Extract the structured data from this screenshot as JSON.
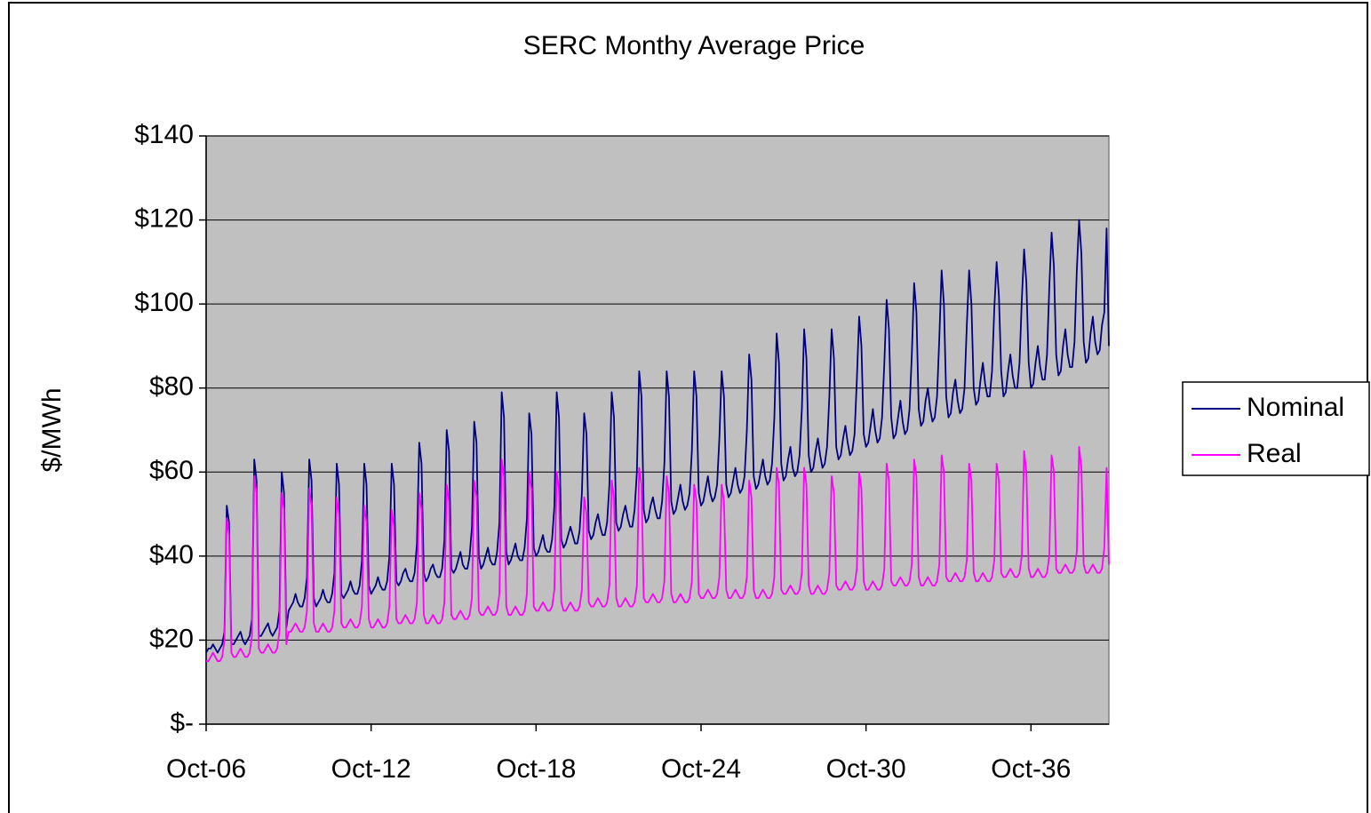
{
  "chart_data": {
    "type": "line",
    "title": "SERC Monthy Average Price",
    "y_label": "$/MWh",
    "categories": [
      "Oct-06",
      null,
      null,
      null,
      null,
      null,
      null,
      null,
      null,
      null,
      null,
      null,
      null,
      null,
      null,
      null,
      null,
      null,
      null,
      null,
      null,
      null,
      null,
      null,
      null,
      null,
      null,
      null,
      null,
      null,
      null,
      null,
      null,
      null,
      null,
      null,
      null,
      null,
      null,
      null,
      null,
      null,
      null,
      null,
      null,
      null,
      null,
      null,
      null,
      null,
      null,
      null,
      null,
      null,
      null,
      null,
      null,
      null,
      null,
      null,
      null,
      null,
      null,
      null,
      null,
      null,
      null,
      null,
      null,
      null,
      null,
      null,
      "Oct-12",
      null,
      null,
      null,
      null,
      null,
      null,
      null,
      null,
      null,
      null,
      null,
      null,
      null,
      null,
      null,
      null,
      null,
      null,
      null,
      null,
      null,
      null,
      null,
      null,
      null,
      null,
      null,
      null,
      null,
      null,
      null,
      null,
      null,
      null,
      null,
      null,
      null,
      null,
      null,
      null,
      null,
      null,
      null,
      null,
      null,
      null,
      null,
      null,
      null,
      null,
      null,
      null,
      null,
      null,
      null,
      null,
      null,
      null,
      null,
      null,
      null,
      null,
      null,
      null,
      null,
      null,
      null,
      null,
      null,
      null,
      null,
      "Oct-18",
      null,
      null,
      null,
      null,
      null,
      null,
      null,
      null,
      null,
      null,
      null,
      null,
      null,
      null,
      null,
      null,
      null,
      null,
      null,
      null,
      null,
      null,
      null,
      null,
      null,
      null,
      null,
      null,
      null,
      null,
      null,
      null,
      null,
      null,
      null,
      null,
      null,
      null,
      null,
      null,
      null,
      null,
      null,
      null,
      null,
      null,
      null,
      null,
      null,
      null,
      null,
      null,
      null,
      null,
      null,
      null,
      null,
      null,
      null,
      null,
      null,
      null,
      null,
      null,
      null,
      null,
      null,
      null,
      null,
      null,
      null,
      "Oct-24",
      null,
      null,
      null,
      null,
      null,
      null,
      null,
      null,
      null,
      null,
      null,
      null,
      null,
      null,
      null,
      null,
      null,
      null,
      null,
      null,
      null,
      null,
      null,
      null,
      null,
      null,
      null,
      null,
      null,
      null,
      null,
      null,
      null,
      null,
      null,
      null,
      null,
      null,
      null,
      null,
      null,
      null,
      null,
      null,
      null,
      null,
      null,
      null,
      null,
      null,
      null,
      null,
      null,
      null,
      null,
      null,
      null,
      null,
      null,
      null,
      null,
      null,
      null,
      null,
      null,
      null,
      null,
      null,
      null,
      null,
      null,
      "Oct-30",
      null,
      null,
      null,
      null,
      null,
      null,
      null,
      null,
      null,
      null,
      null,
      null,
      null,
      null,
      null,
      null,
      null,
      null,
      null,
      null,
      null,
      null,
      null,
      null,
      null,
      null,
      null,
      null,
      null,
      null,
      null,
      null,
      null,
      null,
      null,
      null,
      null,
      null,
      null,
      null,
      null,
      null,
      null,
      null,
      null,
      null,
      null,
      null,
      null,
      null,
      null,
      null,
      null,
      null,
      null,
      null,
      null,
      null,
      null,
      null,
      null,
      null,
      null,
      null,
      null,
      null,
      null,
      null,
      null,
      null,
      null,
      "Oct-36",
      null,
      null,
      null,
      null,
      null,
      null,
      null,
      null,
      null,
      null,
      null,
      null,
      null,
      null,
      null,
      null,
      null,
      null,
      null,
      null,
      null,
      null,
      null,
      null,
      null,
      null,
      null,
      null,
      null,
      null,
      null,
      null,
      null,
      null
    ],
    "series": [
      {
        "name": "Nominal",
        "color": "#000080",
        "values": [
          17,
          18,
          18,
          19,
          18,
          17,
          18,
          19,
          22,
          52,
          48,
          19,
          19,
          20,
          21,
          22,
          20,
          19,
          20,
          21,
          25,
          63,
          58,
          21,
          21,
          22,
          23,
          24,
          22,
          21,
          22,
          23,
          27,
          60,
          55,
          23,
          27,
          28,
          29,
          31,
          29,
          28,
          28,
          30,
          35,
          63,
          58,
          30,
          28,
          29,
          30,
          32,
          30,
          29,
          29,
          31,
          36,
          62,
          57,
          31,
          30,
          31,
          32,
          34,
          32,
          31,
          31,
          33,
          39,
          62,
          57,
          33,
          31,
          32,
          33,
          35,
          33,
          32,
          32,
          34,
          40,
          62,
          57,
          34,
          33,
          34,
          36,
          37,
          35,
          34,
          34,
          36,
          43,
          67,
          62,
          36,
          34,
          35,
          37,
          38,
          36,
          35,
          35,
          37,
          44,
          70,
          65,
          37,
          36,
          37,
          39,
          41,
          38,
          37,
          37,
          40,
          47,
          72,
          67,
          40,
          37,
          38,
          40,
          42,
          39,
          38,
          38,
          41,
          48,
          79,
          73,
          41,
          38,
          39,
          41,
          43,
          40,
          39,
          39,
          42,
          49,
          74,
          69,
          42,
          40,
          41,
          43,
          45,
          42,
          41,
          41,
          44,
          52,
          79,
          73,
          44,
          42,
          43,
          45,
          47,
          45,
          43,
          43,
          46,
          55,
          74,
          69,
          46,
          44,
          45,
          48,
          50,
          47,
          45,
          45,
          48,
          57,
          79,
          73,
          48,
          46,
          47,
          50,
          52,
          49,
          47,
          47,
          51,
          60,
          84,
          78,
          51,
          48,
          49,
          52,
          54,
          51,
          49,
          49,
          53,
          62,
          84,
          78,
          53,
          50,
          51,
          54,
          57,
          53,
          51,
          52,
          55,
          65,
          84,
          78,
          55,
          52,
          53,
          56,
          59,
          55,
          53,
          54,
          57,
          68,
          84,
          78,
          57,
          54,
          55,
          58,
          61,
          57,
          55,
          56,
          59,
          70,
          88,
          82,
          59,
          56,
          57,
          60,
          63,
          59,
          57,
          58,
          62,
          73,
          93,
          86,
          62,
          58,
          59,
          63,
          66,
          61,
          59,
          60,
          64,
          75,
          94,
          87,
          64,
          60,
          61,
          65,
          68,
          64,
          61,
          62,
          66,
          78,
          94,
          87,
          66,
          63,
          64,
          68,
          71,
          67,
          64,
          65,
          69,
          82,
          97,
          90,
          69,
          66,
          67,
          71,
          75,
          70,
          67,
          68,
          73,
          86,
          101,
          94,
          73,
          68,
          69,
          73,
          77,
          72,
          69,
          70,
          75,
          88,
          105,
          98,
          75,
          71,
          72,
          77,
          80,
          75,
          72,
          73,
          78,
          92,
          108,
          100,
          78,
          73,
          74,
          79,
          82,
          77,
          74,
          75,
          80,
          95,
          108,
          100,
          80,
          76,
          77,
          82,
          86,
          81,
          78,
          78,
          84,
          99,
          110,
          102,
          84,
          78,
          79,
          84,
          88,
          83,
          80,
          80,
          86,
          101,
          113,
          105,
          86,
          80,
          81,
          86,
          90,
          85,
          82,
          82,
          88,
          104,
          117,
          109,
          88,
          83,
          84,
          90,
          94,
          88,
          85,
          85,
          91,
          108,
          120,
          112,
          91,
          86,
          87,
          93,
          97,
          91,
          88,
          89,
          95,
          98,
          118,
          90
        ]
      },
      {
        "name": "Real",
        "color": "#ff00ff",
        "values": [
          15,
          15,
          16,
          17,
          16,
          15,
          15,
          16,
          20,
          49,
          45,
          17,
          16,
          16,
          17,
          18,
          17,
          16,
          16,
          17,
          21,
          59,
          55,
          18,
          17,
          17,
          18,
          19,
          18,
          17,
          17,
          18,
          22,
          55,
          51,
          19,
          22,
          22,
          23,
          24,
          23,
          22,
          22,
          23,
          27,
          56,
          52,
          24,
          22,
          22,
          23,
          24,
          23,
          22,
          22,
          23,
          27,
          54,
          50,
          24,
          23,
          23,
          24,
          25,
          24,
          23,
          23,
          24,
          28,
          52,
          48,
          25,
          23,
          23,
          24,
          25,
          24,
          23,
          23,
          24,
          28,
          51,
          47,
          25,
          24,
          24,
          25,
          26,
          25,
          24,
          24,
          25,
          29,
          55,
          51,
          26,
          24,
          24,
          25,
          26,
          25,
          24,
          24,
          25,
          29,
          57,
          53,
          26,
          25,
          25,
          26,
          27,
          26,
          25,
          25,
          26,
          30,
          58,
          54,
          27,
          26,
          26,
          27,
          28,
          27,
          26,
          26,
          27,
          31,
          63,
          59,
          28,
          26,
          26,
          27,
          28,
          27,
          26,
          26,
          27,
          31,
          60,
          56,
          28,
          27,
          27,
          28,
          29,
          28,
          27,
          27,
          28,
          32,
          60,
          56,
          29,
          27,
          27,
          28,
          29,
          28,
          27,
          27,
          28,
          32,
          54,
          50,
          29,
          28,
          28,
          29,
          30,
          29,
          28,
          28,
          29,
          33,
          58,
          54,
          30,
          28,
          28,
          29,
          30,
          29,
          28,
          28,
          29,
          33,
          61,
          57,
          30,
          29,
          29,
          30,
          31,
          30,
          29,
          29,
          30,
          34,
          59,
          55,
          31,
          29,
          29,
          30,
          31,
          30,
          29,
          29,
          30,
          34,
          57,
          53,
          31,
          30,
          30,
          31,
          32,
          31,
          30,
          30,
          31,
          35,
          57,
          53,
          32,
          30,
          30,
          31,
          32,
          31,
          30,
          30,
          31,
          35,
          58,
          54,
          32,
          30,
          30,
          31,
          32,
          31,
          30,
          30,
          31,
          35,
          61,
          57,
          32,
          31,
          31,
          32,
          33,
          32,
          31,
          31,
          32,
          36,
          61,
          57,
          33,
          31,
          31,
          32,
          33,
          32,
          31,
          31,
          32,
          36,
          59,
          55,
          33,
          32,
          32,
          33,
          34,
          33,
          32,
          32,
          33,
          37,
          60,
          56,
          34,
          32,
          32,
          33,
          34,
          33,
          32,
          32,
          33,
          37,
          62,
          58,
          34,
          33,
          33,
          34,
          35,
          34,
          33,
          33,
          34,
          38,
          63,
          59,
          35,
          33,
          33,
          34,
          35,
          34,
          33,
          33,
          34,
          38,
          64,
          60,
          35,
          34,
          34,
          35,
          36,
          35,
          34,
          34,
          35,
          39,
          62,
          58,
          36,
          34,
          34,
          35,
          36,
          35,
          34,
          34,
          35,
          39,
          62,
          58,
          36,
          35,
          35,
          36,
          37,
          36,
          35,
          35,
          36,
          40,
          65,
          60,
          37,
          35,
          35,
          36,
          37,
          36,
          35,
          35,
          36,
          40,
          64,
          60,
          37,
          36,
          36,
          37,
          38,
          37,
          36,
          36,
          37,
          41,
          66,
          61,
          38,
          36,
          36,
          37,
          38,
          37,
          36,
          36,
          37,
          42,
          61,
          38
        ]
      }
    ],
    "ylim": [
      0,
      140
    ],
    "yticks": [
      {
        "value": 0,
        "label": "$-"
      },
      {
        "value": 20,
        "label": "$20"
      },
      {
        "value": 40,
        "label": "$40"
      },
      {
        "value": 60,
        "label": "$60"
      },
      {
        "value": 80,
        "label": "$80"
      },
      {
        "value": 100,
        "label": "$100"
      },
      {
        "value": 120,
        "label": "$120"
      },
      {
        "value": 140,
        "label": "$140"
      }
    ],
    "grid": true,
    "legend": "right",
    "plot_background": "#c0c0c0"
  }
}
